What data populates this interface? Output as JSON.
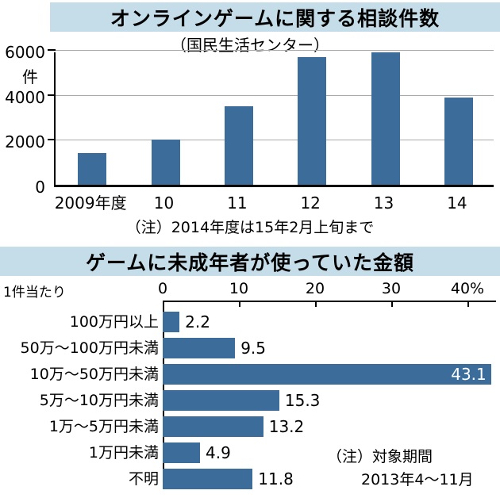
{
  "page": {
    "banner_color": "#c5dde9",
    "background": "#ffffff"
  },
  "chart_data": [
    {
      "type": "bar",
      "orientation": "vertical",
      "title": "オンラインゲームに関する相談件数",
      "subtitle": "（国民生活センター）",
      "categories": [
        "2009年度",
        "10",
        "11",
        "12",
        "13",
        "14"
      ],
      "values": [
        1400,
        2000,
        3500,
        5700,
        5900,
        3900
      ],
      "ylabel": "件",
      "ylim": [
        0,
        6000
      ],
      "yticks": [
        0,
        2000,
        4000,
        6000
      ],
      "note": "（注）2014年度は15年2月上旬まで",
      "bar_color": "#3c6c99",
      "grid": true
    },
    {
      "type": "bar",
      "orientation": "horizontal",
      "title": "ゲームに未成年者が使っていた金額",
      "unit_label": "1件当たり",
      "categories": [
        "100万円以上",
        "50万〜100万円未満",
        "10万〜50万円未満",
        "5万〜10万円未満",
        "1万〜5万円未満",
        "1万円未満",
        "不明"
      ],
      "values": [
        2.2,
        9.5,
        43.1,
        15.3,
        13.2,
        4.9,
        11.8
      ],
      "xlim": [
        0,
        40
      ],
      "xticks": [
        0,
        10,
        20,
        30,
        40
      ],
      "x_unit": "%",
      "note_lines": [
        "（注）対象期間",
        "2013年4〜11月"
      ],
      "bar_color": "#3c6c99",
      "grid": false
    }
  ]
}
